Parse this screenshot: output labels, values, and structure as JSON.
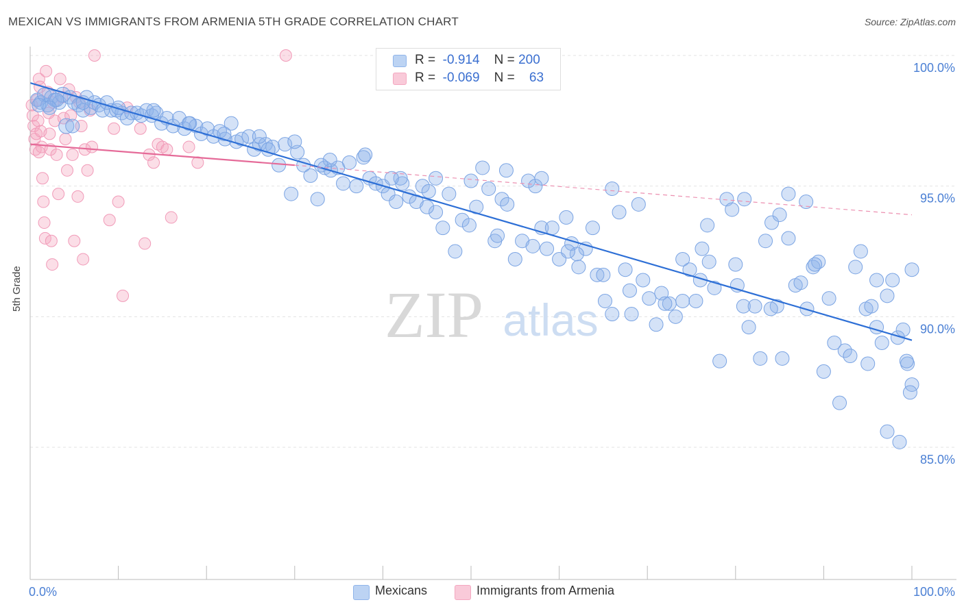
{
  "title": "MEXICAN VS IMMIGRANTS FROM ARMENIA 5TH GRADE CORRELATION CHART",
  "source": "Source: ZipAtlas.com",
  "watermark": {
    "zip": "ZIP",
    "atlas": "atlas"
  },
  "legend_top": [
    {
      "r_label": "R =",
      "r_value": "-0.914",
      "n_label": "N =",
      "n_value": "200",
      "color": "#8fb4ea"
    },
    {
      "r_label": "R =",
      "r_value": "-0.069",
      "n_label": "N =",
      "n_value": "63",
      "color": "#f4a7c0"
    }
  ],
  "legend_bottom": [
    {
      "label": "Mexicans",
      "color": "#8fb4ea"
    },
    {
      "label": "Immigrants from Armenia",
      "color": "#f4a7c0"
    }
  ],
  "chart_data": {
    "type": "scatter",
    "title": "MEXICAN VS IMMIGRANTS FROM ARMENIA 5TH GRADE CORRELATION CHART",
    "xlabel": "",
    "ylabel": "5th Grade",
    "xlim": [
      0,
      100
    ],
    "ylim": [
      80,
      100.5
    ],
    "x_tick_labels": [
      "0.0%",
      "100.0%"
    ],
    "y_ticks": [
      85,
      90,
      95,
      100
    ],
    "y_tick_labels": [
      "85.0%",
      "90.0%",
      "95.0%",
      "100.0%"
    ],
    "grid": true,
    "series": [
      {
        "name": "Mexicans",
        "color": "#6f9be0",
        "trend": {
          "x": [
            0,
            100
          ],
          "y": [
            98.95,
            89.1
          ],
          "dash": false
        },
        "points": [
          [
            0.8,
            98.3
          ],
          [
            1.2,
            98.2
          ],
          [
            1.6,
            98.5
          ],
          [
            2.0,
            98.1
          ],
          [
            2.4,
            98.4
          ],
          [
            2.8,
            98.3
          ],
          [
            3.3,
            98.2
          ],
          [
            3.7,
            98.5
          ],
          [
            4.1,
            97.3
          ],
          [
            4.5,
            98.4
          ],
          [
            5.0,
            98.2
          ],
          [
            5.5,
            98.1
          ],
          [
            6.0,
            97.9
          ],
          [
            6.4,
            98.4
          ],
          [
            6.9,
            98.0
          ],
          [
            7.3,
            98.2
          ],
          [
            7.8,
            98.1
          ],
          [
            8.2,
            97.9
          ],
          [
            8.7,
            98.2
          ],
          [
            9.2,
            97.9
          ],
          [
            9.8,
            97.9
          ],
          [
            10.4,
            97.8
          ],
          [
            11.0,
            97.6
          ],
          [
            11.5,
            97.8
          ],
          [
            12.1,
            97.8
          ],
          [
            12.6,
            97.7
          ],
          [
            13.2,
            97.9
          ],
          [
            13.8,
            97.7
          ],
          [
            14.3,
            97.8
          ],
          [
            14.9,
            97.4
          ],
          [
            15.5,
            97.6
          ],
          [
            16.2,
            97.3
          ],
          [
            16.9,
            97.6
          ],
          [
            17.5,
            97.2
          ],
          [
            18.1,
            97.4
          ],
          [
            18.8,
            97.3
          ],
          [
            19.4,
            97.0
          ],
          [
            20.1,
            97.2
          ],
          [
            20.8,
            96.9
          ],
          [
            21.5,
            97.1
          ],
          [
            22.1,
            96.8
          ],
          [
            22.8,
            97.4
          ],
          [
            23.4,
            96.7
          ],
          [
            24.0,
            96.8
          ],
          [
            24.8,
            96.9
          ],
          [
            25.4,
            96.4
          ],
          [
            26.0,
            96.6
          ],
          [
            26.7,
            96.6
          ],
          [
            27.5,
            96.5
          ],
          [
            28.2,
            95.8
          ],
          [
            28.9,
            96.6
          ],
          [
            29.6,
            94.7
          ],
          [
            30.3,
            96.3
          ],
          [
            31.0,
            95.8
          ],
          [
            31.8,
            95.4
          ],
          [
            32.6,
            94.5
          ],
          [
            33.4,
            95.7
          ],
          [
            34.1,
            95.6
          ],
          [
            34.9,
            95.7
          ],
          [
            35.5,
            95.1
          ],
          [
            36.2,
            95.9
          ],
          [
            37.0,
            95.0
          ],
          [
            37.8,
            96.1
          ],
          [
            38.5,
            95.3
          ],
          [
            39.2,
            95.1
          ],
          [
            40.0,
            95.0
          ],
          [
            40.6,
            94.7
          ],
          [
            41.5,
            94.4
          ],
          [
            42.2,
            95.1
          ],
          [
            43.0,
            94.6
          ],
          [
            43.8,
            94.4
          ],
          [
            44.5,
            95.0
          ],
          [
            45.2,
            94.8
          ],
          [
            46.0,
            94.0
          ],
          [
            46.8,
            93.4
          ],
          [
            47.5,
            94.7
          ],
          [
            48.2,
            92.5
          ],
          [
            49.0,
            93.7
          ],
          [
            49.8,
            93.5
          ],
          [
            50.6,
            94.2
          ],
          [
            51.3,
            95.7
          ],
          [
            52.0,
            94.9
          ],
          [
            52.7,
            92.9
          ],
          [
            53.5,
            94.5
          ],
          [
            54.1,
            94.3
          ],
          [
            55.0,
            92.2
          ],
          [
            55.8,
            92.9
          ],
          [
            56.5,
            95.2
          ],
          [
            57.3,
            95.0
          ],
          [
            58.0,
            93.4
          ],
          [
            58.6,
            92.6
          ],
          [
            59.2,
            93.4
          ],
          [
            60.0,
            92.2
          ],
          [
            60.8,
            93.8
          ],
          [
            61.4,
            92.8
          ],
          [
            62.2,
            91.9
          ],
          [
            63.0,
            92.6
          ],
          [
            63.8,
            93.4
          ],
          [
            64.3,
            91.6
          ],
          [
            65.2,
            90.6
          ],
          [
            66.0,
            90.1
          ],
          [
            66.8,
            94.0
          ],
          [
            67.5,
            91.8
          ],
          [
            68.2,
            90.1
          ],
          [
            69.0,
            94.3
          ],
          [
            69.5,
            91.4
          ],
          [
            70.2,
            90.7
          ],
          [
            71.0,
            89.7
          ],
          [
            71.6,
            90.9
          ],
          [
            72.5,
            90.5
          ],
          [
            73.2,
            90.0
          ],
          [
            74.0,
            90.6
          ],
          [
            74.8,
            91.8
          ],
          [
            75.5,
            90.6
          ],
          [
            76.2,
            92.6
          ],
          [
            76.8,
            93.5
          ],
          [
            77.6,
            91.1
          ],
          [
            78.2,
            88.3
          ],
          [
            79.0,
            94.5
          ],
          [
            79.6,
            94.1
          ],
          [
            80.2,
            91.2
          ],
          [
            80.9,
            90.4
          ],
          [
            81.5,
            89.6
          ],
          [
            82.2,
            90.4
          ],
          [
            82.8,
            88.4
          ],
          [
            83.4,
            92.9
          ],
          [
            84.1,
            93.6
          ],
          [
            84.7,
            90.4
          ],
          [
            85.3,
            88.4
          ],
          [
            86.0,
            93.0
          ],
          [
            86.8,
            91.2
          ],
          [
            87.4,
            91.3
          ],
          [
            88.1,
            90.3
          ],
          [
            88.8,
            91.9
          ],
          [
            89.4,
            92.1
          ],
          [
            90.0,
            87.9
          ],
          [
            90.6,
            90.7
          ],
          [
            91.2,
            89.0
          ],
          [
            91.8,
            86.7
          ],
          [
            92.4,
            88.7
          ],
          [
            93.0,
            88.5
          ],
          [
            93.6,
            91.9
          ],
          [
            94.2,
            92.5
          ],
          [
            94.8,
            90.3
          ],
          [
            95.4,
            90.4
          ],
          [
            96.0,
            91.4
          ],
          [
            96.6,
            89.0
          ],
          [
            97.2,
            90.8
          ],
          [
            97.8,
            91.4
          ],
          [
            98.4,
            89.2
          ],
          [
            99.0,
            89.5
          ],
          [
            99.5,
            88.2
          ],
          [
            100.0,
            87.4
          ],
          [
            100.0,
            91.8
          ],
          [
            99.8,
            87.1
          ],
          [
            97.2,
            85.6
          ],
          [
            98.6,
            85.2
          ],
          [
            99.4,
            88.3
          ],
          [
            96.0,
            89.6
          ],
          [
            95.0,
            88.2
          ],
          [
            86.0,
            94.7
          ],
          [
            85.0,
            93.9
          ],
          [
            88.0,
            94.4
          ],
          [
            81.0,
            94.5
          ],
          [
            77.0,
            92.1
          ],
          [
            74.0,
            92.2
          ],
          [
            66.0,
            94.9
          ],
          [
            62.0,
            92.4
          ],
          [
            58.0,
            95.3
          ],
          [
            54.0,
            95.6
          ],
          [
            50.0,
            95.2
          ],
          [
            46.0,
            95.3
          ],
          [
            42.0,
            95.3
          ],
          [
            38.0,
            96.2
          ],
          [
            34.0,
            96.0
          ],
          [
            30.0,
            96.7
          ],
          [
            26.0,
            96.9
          ],
          [
            22.0,
            97.0
          ],
          [
            18.0,
            97.4
          ],
          [
            14.0,
            97.9
          ],
          [
            10.0,
            98.0
          ],
          [
            6.0,
            98.2
          ],
          [
            3.0,
            98.3
          ],
          [
            1.0,
            98.1
          ],
          [
            2.2,
            98.0
          ],
          [
            4.8,
            97.3
          ],
          [
            27.0,
            96.4
          ],
          [
            33.0,
            95.8
          ],
          [
            41.0,
            95.3
          ],
          [
            45.0,
            94.2
          ],
          [
            53.0,
            93.1
          ],
          [
            57.0,
            92.7
          ],
          [
            61.0,
            92.5
          ],
          [
            65.0,
            91.6
          ],
          [
            68.0,
            91.0
          ],
          [
            72.0,
            90.5
          ],
          [
            76.0,
            91.4
          ],
          [
            80.0,
            92.0
          ],
          [
            84.0,
            90.3
          ],
          [
            89.0,
            92.0
          ]
        ]
      },
      {
        "name": "Immigrants from Armenia",
        "color": "#f08db0",
        "trend": {
          "x": [
            0,
            30
          ],
          "y": [
            96.6,
            95.8
          ],
          "dash": false
        },
        "trend_extension": {
          "x": [
            30,
            100
          ],
          "y": [
            95.8,
            93.9
          ],
          "dash": true
        },
        "points": [
          [
            0.2,
            98.1
          ],
          [
            0.3,
            97.7
          ],
          [
            0.4,
            97.3
          ],
          [
            0.5,
            96.8
          ],
          [
            0.6,
            96.4
          ],
          [
            0.7,
            97.0
          ],
          [
            0.8,
            98.3
          ],
          [
            0.9,
            97.5
          ],
          [
            1.0,
            99.1
          ],
          [
            1.1,
            98.8
          ],
          [
            1.2,
            97.1
          ],
          [
            1.3,
            96.5
          ],
          [
            1.4,
            95.3
          ],
          [
            1.5,
            94.4
          ],
          [
            1.6,
            93.6
          ],
          [
            1.7,
            93.0
          ],
          [
            1.8,
            99.4
          ],
          [
            2.0,
            98.6
          ],
          [
            2.1,
            97.8
          ],
          [
            2.2,
            97.0
          ],
          [
            2.3,
            96.4
          ],
          [
            2.4,
            92.9
          ],
          [
            2.5,
            92.0
          ],
          [
            2.6,
            98.2
          ],
          [
            2.8,
            97.5
          ],
          [
            3.0,
            96.2
          ],
          [
            3.2,
            94.7
          ],
          [
            3.4,
            99.1
          ],
          [
            3.6,
            98.4
          ],
          [
            3.8,
            97.6
          ],
          [
            4.0,
            96.8
          ],
          [
            4.2,
            95.6
          ],
          [
            4.4,
            98.7
          ],
          [
            4.6,
            97.7
          ],
          [
            4.8,
            96.2
          ],
          [
            5.0,
            92.9
          ],
          [
            5.2,
            98.4
          ],
          [
            5.4,
            94.6
          ],
          [
            5.6,
            98.2
          ],
          [
            5.8,
            97.3
          ],
          [
            6.0,
            92.2
          ],
          [
            6.2,
            96.4
          ],
          [
            6.5,
            95.6
          ],
          [
            6.8,
            97.9
          ],
          [
            7.0,
            96.5
          ],
          [
            7.3,
            100.0
          ],
          [
            9.0,
            93.7
          ],
          [
            9.5,
            97.2
          ],
          [
            10.0,
            94.4
          ],
          [
            10.5,
            90.8
          ],
          [
            11.0,
            98.0
          ],
          [
            12.5,
            97.2
          ],
          [
            13.0,
            92.8
          ],
          [
            13.5,
            96.2
          ],
          [
            14.0,
            95.9
          ],
          [
            14.5,
            96.6
          ],
          [
            15.0,
            96.5
          ],
          [
            15.5,
            96.4
          ],
          [
            16.0,
            93.8
          ],
          [
            18.0,
            96.5
          ],
          [
            19.0,
            95.9
          ],
          [
            29.0,
            100.0
          ],
          [
            1.0,
            96.3
          ]
        ]
      }
    ]
  }
}
